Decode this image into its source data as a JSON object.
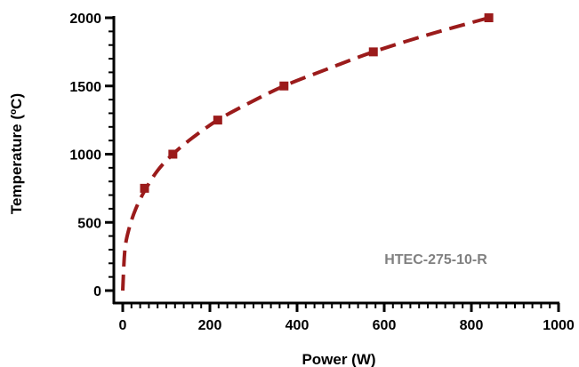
{
  "chart_data": {
    "type": "scatter",
    "title": "",
    "xlabel": "Power (W)",
    "ylabel": "Temperature (ºC)",
    "xlim": [
      0,
      1000
    ],
    "ylim": [
      0,
      2000
    ],
    "x_ticks": [
      "0",
      "200",
      "400",
      "600",
      "800",
      "1000"
    ],
    "y_ticks": [
      "0",
      "500",
      "1000",
      "1500",
      "2000"
    ],
    "grid": false,
    "series": [
      {
        "x": [
          50,
          115,
          218,
          370,
          575,
          840
        ],
        "y": [
          750,
          1000,
          1250,
          1500,
          1750,
          2000
        ],
        "marker": "square",
        "color": "#9b1b1b",
        "fit_line": "dashed",
        "fit_x": [
          0,
          5,
          15,
          30,
          50,
          80,
          115,
          160,
          218,
          290,
          370,
          470,
          575,
          700,
          840
        ],
        "fit_y": [
          0,
          300,
          460,
          600,
          730,
          880,
          1000,
          1120,
          1250,
          1375,
          1500,
          1625,
          1750,
          1875,
          2000
        ]
      }
    ],
    "annotation": "HTEC-275-10-R",
    "annotation_color": "#808080"
  }
}
